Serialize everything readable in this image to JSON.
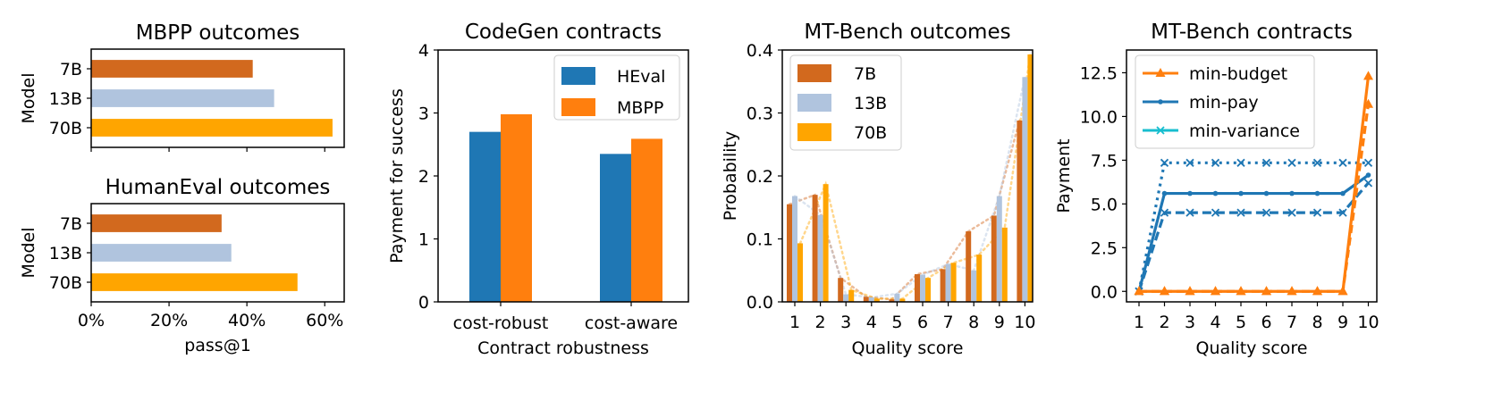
{
  "colors": {
    "c7b": "#d2691e",
    "c13b": "#b0c4de",
    "c70b": "#ffa500",
    "heval": "#1f77b4",
    "mbpp": "#ff7f0e",
    "pay": "#1f77b4",
    "budget": "#ff7f0e"
  },
  "chart_data": [
    {
      "id": "mbpp-outcomes",
      "type": "bar",
      "orientation": "horizontal",
      "title": "MBPP outcomes",
      "ylabel": "Model",
      "categories": [
        "7B",
        "13B",
        "70B"
      ],
      "values": [
        0.415,
        0.47,
        0.62
      ],
      "xlim": [
        0,
        0.65
      ],
      "grid": false
    },
    {
      "id": "humaneval-outcomes",
      "type": "bar",
      "orientation": "horizontal",
      "title": "HumanEval outcomes",
      "ylabel": "Model",
      "xlabel": "pass@1",
      "categories": [
        "7B",
        "13B",
        "70B"
      ],
      "values": [
        0.335,
        0.36,
        0.53
      ],
      "xlim": [
        0,
        0.65
      ],
      "xticks": [
        "0%",
        "20%",
        "40%",
        "60%"
      ],
      "grid": false
    },
    {
      "id": "codegen-contracts",
      "type": "bar",
      "title": "CodeGen contracts",
      "xlabel": "Contract robustness",
      "ylabel": "Payment for success",
      "categories": [
        "cost-robust",
        "cost-aware"
      ],
      "series": [
        {
          "name": "HEval",
          "values": [
            2.7,
            2.35
          ]
        },
        {
          "name": "MBPP",
          "values": [
            2.98,
            2.59
          ]
        }
      ],
      "ylim": [
        0,
        4
      ],
      "yticks": [
        "0",
        "1",
        "2",
        "3",
        "4"
      ],
      "legend": "top-right",
      "grid": false
    },
    {
      "id": "mtbench-outcomes",
      "type": "bar",
      "title": "MT-Bench outcomes",
      "xlabel": "Quality score",
      "ylabel": "Probability",
      "categories": [
        "1",
        "2",
        "3",
        "4",
        "5",
        "6",
        "7",
        "8",
        "9",
        "10"
      ],
      "series": [
        {
          "name": "7B",
          "values": [
            0.155,
            0.17,
            0.038,
            0.008,
            0.004,
            0.044,
            0.052,
            0.112,
            0.137,
            0.288
          ]
        },
        {
          "name": "13B",
          "values": [
            0.168,
            0.138,
            0.012,
            0.007,
            0.013,
            0.043,
            0.06,
            0.05,
            0.168,
            0.357
          ]
        },
        {
          "name": "70B",
          "values": [
            0.093,
            0.187,
            0.019,
            0.005,
            0.005,
            0.038,
            0.062,
            0.075,
            0.118,
            0.393
          ]
        }
      ],
      "ylim": [
        0,
        0.4
      ],
      "yticks": [
        "0.0",
        "0.1",
        "0.2",
        "0.3",
        "0.4"
      ],
      "legend": "top-left",
      "grid": false
    },
    {
      "id": "mtbench-contracts",
      "type": "line",
      "title": "MT-Bench contracts",
      "xlabel": "Quality score",
      "ylabel": "Payment",
      "x": [
        1,
        2,
        3,
        4,
        5,
        6,
        7,
        8,
        9,
        10
      ],
      "series": [
        {
          "name": "min-budget",
          "values": [
            0,
            0,
            0,
            0,
            0,
            0,
            0,
            0,
            0,
            12.3
          ]
        },
        {
          "name": "",
          "values": [
            0,
            0,
            0,
            0,
            0,
            0,
            0,
            0,
            0,
            10.7
          ]
        },
        {
          "name": "min-pay",
          "values": [
            0,
            5.6,
            5.6,
            5.6,
            5.6,
            5.6,
            5.6,
            5.6,
            5.6,
            6.65
          ]
        },
        {
          "name": "min-variance",
          "values": [
            0,
            7.35,
            7.35,
            7.35,
            7.35,
            7.35,
            7.35,
            7.35,
            7.35,
            7.35
          ]
        },
        {
          "name": "",
          "values": [
            0,
            4.5,
            4.5,
            4.5,
            4.5,
            4.5,
            4.5,
            4.5,
            4.5,
            6.2
          ]
        }
      ],
      "ylim": [
        -0.6,
        13.8
      ],
      "yticks": [
        "0.0",
        "2.5",
        "5.0",
        "7.5",
        "10.0",
        "12.5"
      ],
      "legend": "top-left",
      "grid": false
    }
  ]
}
